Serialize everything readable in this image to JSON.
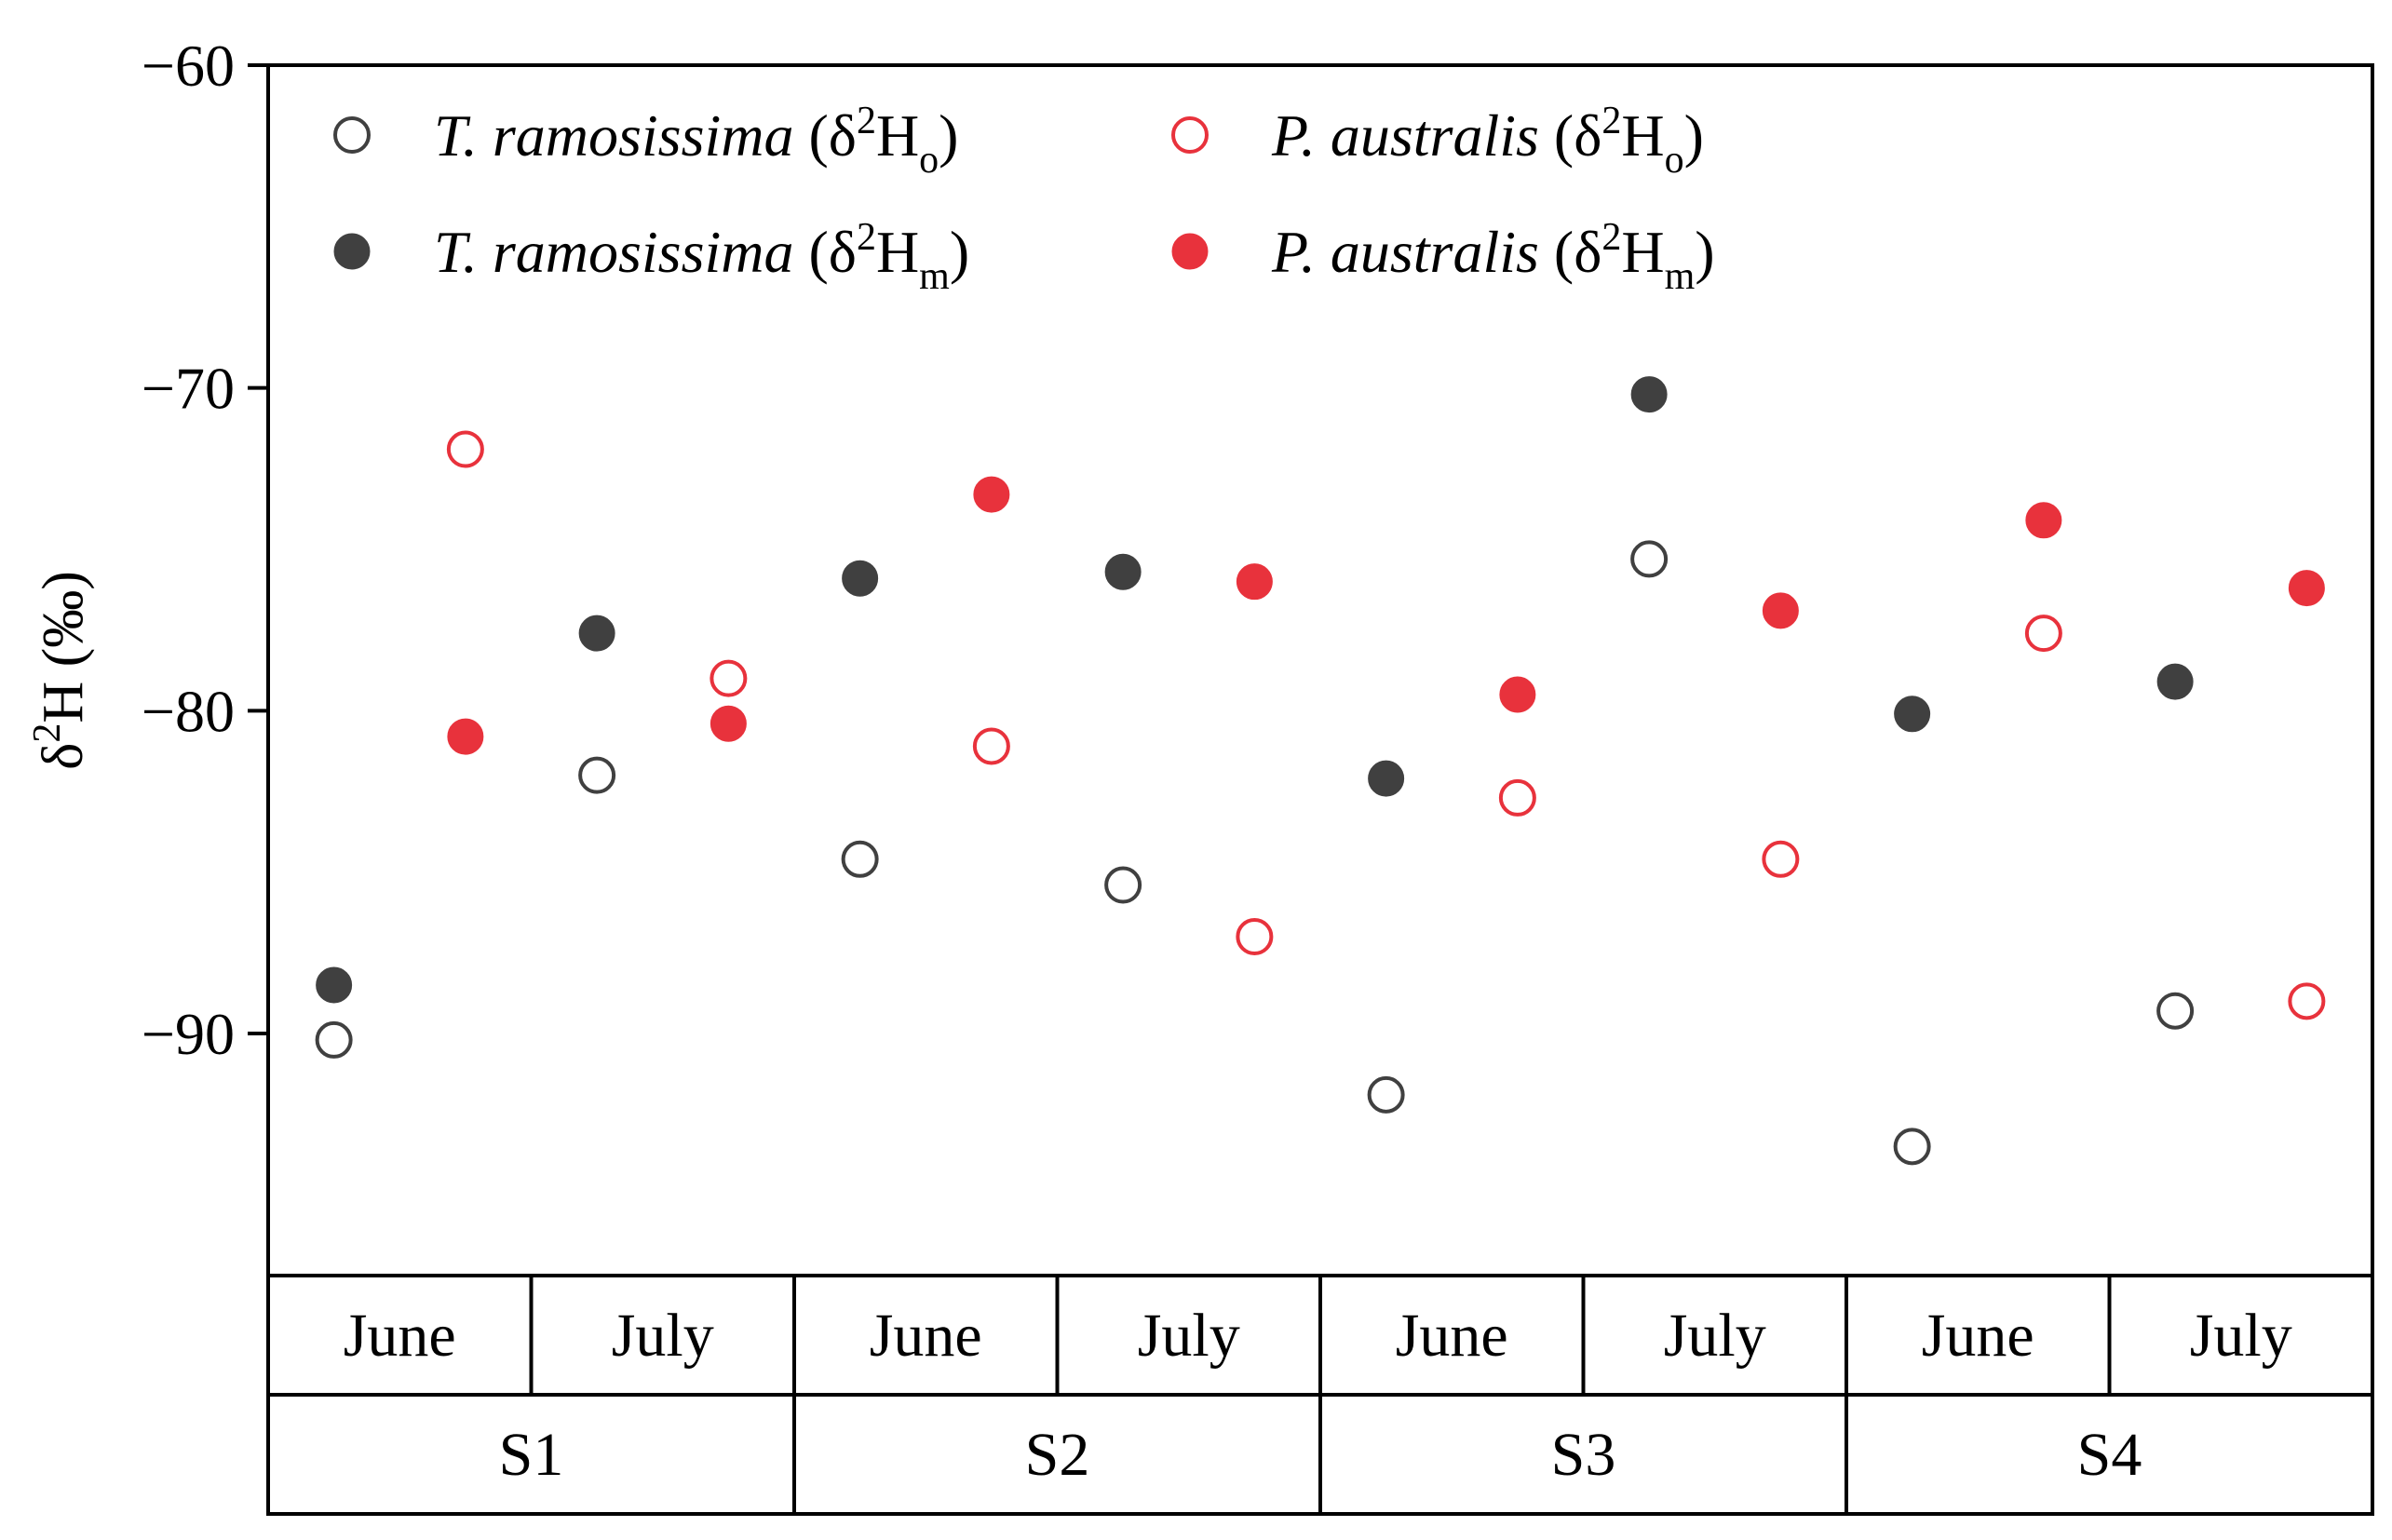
{
  "chart_data": {
    "type": "scatter",
    "title": "",
    "ylabel": "δ²H (‰)",
    "ylabel_parts": {
      "delta": "δ",
      "sup": "2",
      "main": "H (‰)"
    },
    "ylim": [
      -97.5,
      -60
    ],
    "yticks": [
      -60,
      -70,
      -80,
      -90
    ],
    "ytick_labels": [
      "−60",
      "−70",
      "−80",
      "−90"
    ],
    "sites": [
      "S1",
      "S2",
      "S3",
      "S4"
    ],
    "months": [
      "June",
      "July",
      "June",
      "July",
      "June",
      "July",
      "June",
      "July"
    ],
    "colors": {
      "tamarix": "#404040",
      "phragmites": "#e8323c"
    },
    "series": [
      {
        "key": "tr_o",
        "species": "T. ramosissima",
        "sub": "o",
        "fill": false,
        "color": "#404040",
        "offset": -0.25,
        "values": [
          -90.2,
          -82.0,
          -84.6,
          -85.4,
          -91.9,
          -75.3,
          -93.5,
          -89.3
        ]
      },
      {
        "key": "tr_m",
        "species": "T. ramosissima",
        "sub": "m",
        "fill": true,
        "color": "#404040",
        "offset": -0.25,
        "values": [
          -88.5,
          -77.6,
          -75.9,
          -75.7,
          -82.1,
          -70.2,
          -80.1,
          -79.1
        ]
      },
      {
        "key": "pa_o",
        "species": "P. australis",
        "sub": "o",
        "fill": false,
        "color": "#e8323c",
        "offset": 0.25,
        "values": [
          -71.9,
          -79.0,
          -81.1,
          -87.0,
          -82.7,
          -84.6,
          -77.6,
          -89.0
        ]
      },
      {
        "key": "pa_m",
        "species": "P. australis",
        "sub": "m",
        "fill": true,
        "color": "#e8323c",
        "offset": 0.25,
        "values": [
          -80.8,
          -80.4,
          -73.3,
          -76.0,
          -79.5,
          -76.9,
          -74.1,
          -76.2
        ]
      }
    ],
    "legend": {
      "placement": "top-left",
      "entries": [
        {
          "series": "tr_o",
          "species": "T. ramosissima",
          "open": " (δ",
          "sup": "2",
          "H": "H",
          "sub": "o",
          "close": ")"
        },
        {
          "series": "pa_o",
          "species": "P. australis",
          "open": " (δ",
          "sup": "2",
          "H": "H",
          "sub": "o",
          "close": ")"
        },
        {
          "series": "tr_m",
          "species": "T. ramosissima",
          "open": " (δ",
          "sup": "2",
          "H": "H",
          "sub": "m",
          "close": ")"
        },
        {
          "series": "pa_m",
          "species": "P. australis",
          "open": " (δ",
          "sup": "2",
          "H": "H",
          "sub": "m",
          "close": ")"
        }
      ]
    }
  }
}
